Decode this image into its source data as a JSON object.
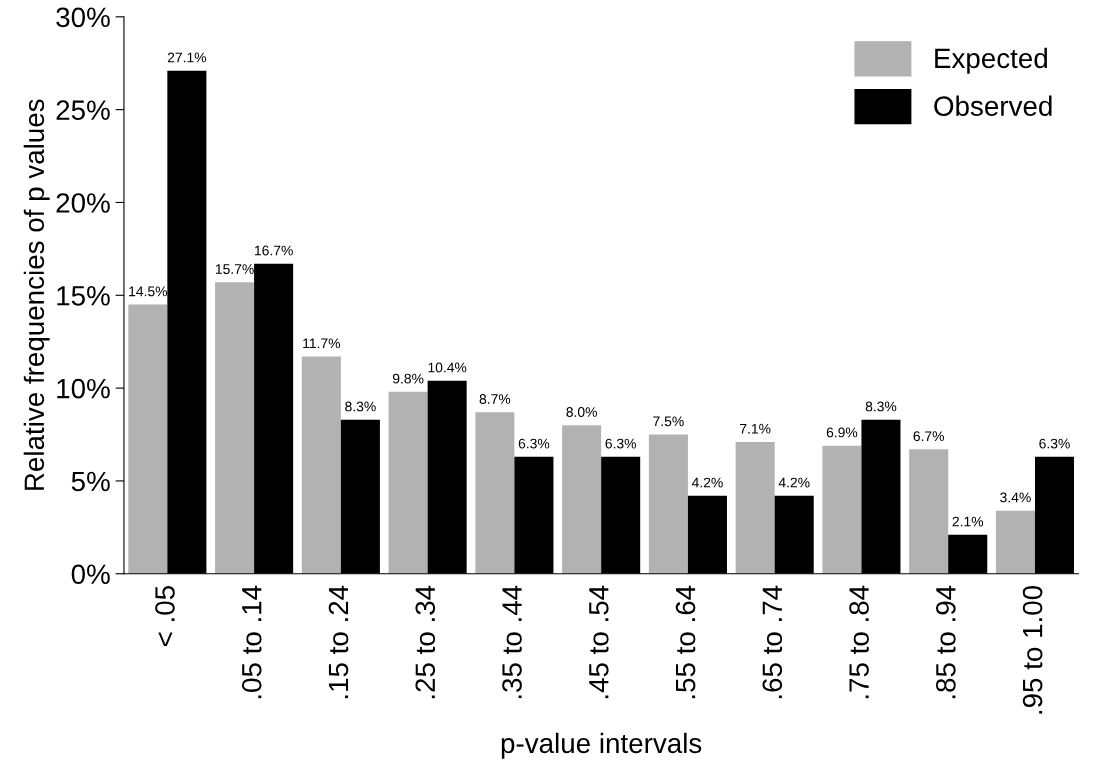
{
  "chart_data": {
    "type": "bar",
    "xlabel": "p-value intervals",
    "ylabel": "Relative frequencies of p values",
    "categories": [
      "< .05",
      ".05 to .14",
      ".15 to .24",
      ".25 to .34",
      ".35 to .44",
      ".45 to .54",
      ".55 to .64",
      ".65 to .74",
      ".75 to .84",
      ".85 to .94",
      ".95 to 1.00"
    ],
    "series": [
      {
        "name": "Expected",
        "color": "#b2b2b2",
        "values": [
          14.5,
          15.7,
          11.7,
          9.8,
          8.7,
          8.0,
          7.5,
          7.1,
          6.9,
          6.7,
          3.4
        ],
        "value_labels": [
          "14.5%",
          "15.7%",
          "11.7%",
          "9.8%",
          "8.7%",
          "8.0%",
          "7.5%",
          "7.1%",
          "6.9%",
          "6.7%",
          "3.4%"
        ]
      },
      {
        "name": "Observed",
        "color": "#000000",
        "values": [
          27.1,
          16.7,
          8.3,
          10.4,
          6.3,
          6.3,
          4.2,
          4.2,
          8.3,
          2.1,
          6.3
        ],
        "value_labels": [
          "27.1%",
          "16.7%",
          "8.3%",
          "10.4%",
          "6.3%",
          "6.3%",
          "4.2%",
          "4.2%",
          "8.3%",
          "2.1%",
          "6.3%"
        ]
      }
    ],
    "ylim": [
      0,
      30
    ],
    "yticks": [
      {
        "value": 0,
        "label": "0%"
      },
      {
        "value": 5,
        "label": "5%"
      },
      {
        "value": 10,
        "label": "10%"
      },
      {
        "value": 15,
        "label": "15%"
      },
      {
        "value": 20,
        "label": "20%"
      },
      {
        "value": 25,
        "label": "25%"
      },
      {
        "value": 30,
        "label": "30%"
      }
    ],
    "grid": false,
    "legend": "top right"
  }
}
